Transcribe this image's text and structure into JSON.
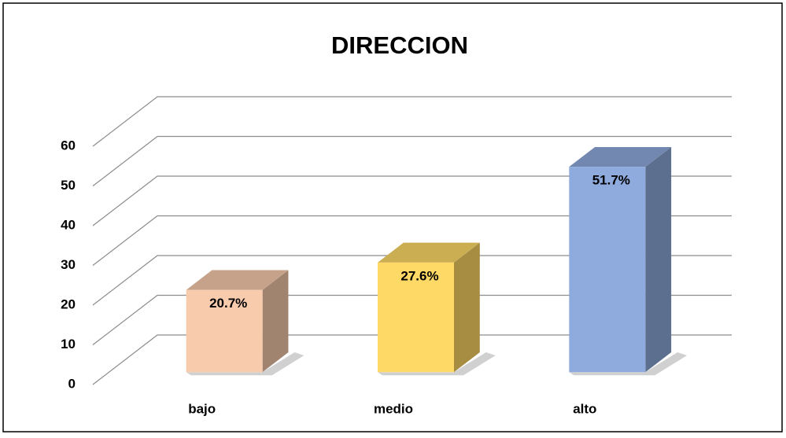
{
  "chart_data": {
    "type": "bar3d",
    "title": "DIRECCION",
    "categories": [
      "bajo",
      "medio",
      "alto"
    ],
    "values": [
      20.7,
      27.6,
      51.7
    ],
    "value_labels": [
      "20.7%",
      "27.6%",
      "51.7%"
    ],
    "colors": [
      "#f8cbad",
      "#ffd966",
      "#8faadc"
    ],
    "ylim": [
      0,
      60
    ],
    "yticks": [
      0,
      10,
      20,
      30,
      40,
      50,
      60
    ],
    "grid": true
  }
}
